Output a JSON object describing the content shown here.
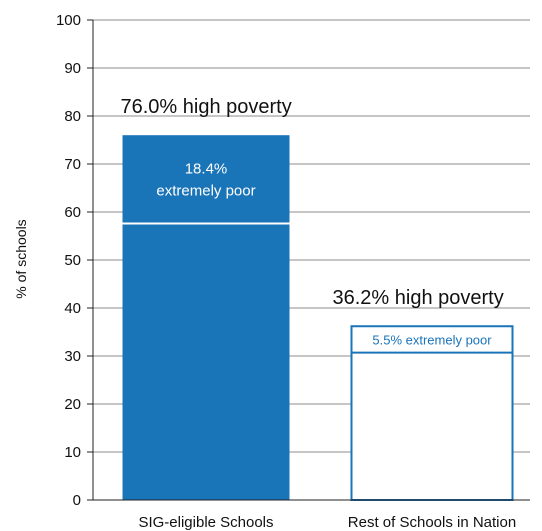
{
  "chart_data": {
    "type": "bar",
    "ylabel": "% of schools",
    "ylim": [
      0,
      100
    ],
    "yticks": [
      0,
      10,
      20,
      30,
      40,
      50,
      60,
      70,
      80,
      90,
      100
    ],
    "grid": true,
    "categories": [
      "SIG-eligible Schools",
      "Rest of Schools in Nation"
    ],
    "series": [
      {
        "values": [
          76.0,
          36.2
        ]
      },
      {
        "values": [
          57.6,
          30.7
        ]
      }
    ],
    "bars": [
      {
        "category": "SIG-eligible Schools",
        "style": "filled",
        "high_poverty": 76.0,
        "extremely_poor": 18.4,
        "total_label": "76.0% high poverty",
        "inner_label": [
          "18.4%",
          "extremely poor"
        ]
      },
      {
        "category": "Rest of Schools in Nation",
        "style": "outline",
        "high_poverty": 36.2,
        "extremely_poor": 5.5,
        "total_label": "36.2% high poverty",
        "inner_label": [
          "5.5% extremely poor"
        ]
      }
    ],
    "colors": {
      "bar": "#1a74b8",
      "grid": "#8c8c8c",
      "axis": "#222222"
    }
  }
}
